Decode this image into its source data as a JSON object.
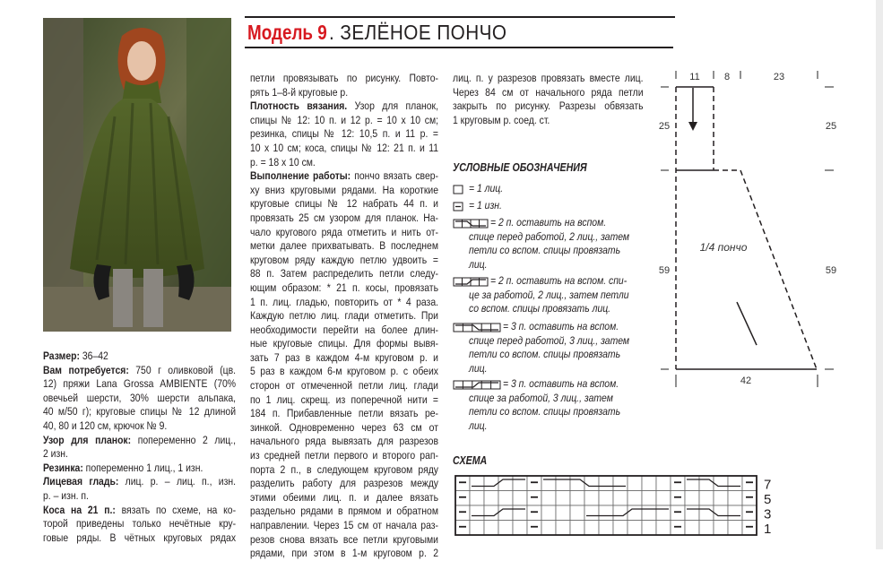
{
  "header": {
    "model": "Модель 9",
    "title": ". ЗЕЛЁНОЕ ПОНЧО"
  },
  "colors": {
    "accent": "#d71920",
    "text": "#231f20",
    "yarn": "#4b5a22"
  },
  "photo": {
    "alt_icon": "woman-in-green-poncho-photo"
  },
  "columns": [
    [
      {
        "label": "Размер:",
        "lines": [
          " 36–42"
        ]
      },
      {
        "label": "Вам потребуется:",
        "lines": [
          " 750 г оливковой (цв.",
          "12) пряжи Lana Grossa AMBIENTE (70%",
          "овечьей шерсти, 30% шерсти альпака,",
          "40 м/50 г); круговые спицы № 12 длиной",
          "40, 80 и 120 см, крючок № 9."
        ]
      },
      {
        "label": "Узор для планок:",
        "lines": [
          " попеременно 2 лиц.,",
          "2 изн."
        ]
      },
      {
        "label": "Резинка:",
        "lines": [
          " попеременно 1 лиц., 1 изн."
        ]
      },
      {
        "label": "Лицевая гладь:",
        "lines": [
          " лиц. р. – лиц. п., изн.",
          "р. – изн. п."
        ]
      },
      {
        "label": "Коса на 21 п.:",
        "lines": [
          " вязать по схеме, на ко-",
          "торой приведены только нечётные кру-",
          "говые ряды. В чётных круговых рядах"
        ],
        "continues": true
      }
    ],
    [
      {
        "label": "",
        "lines": [
          "петли провязывать по рисунку. Повто-",
          "рять 1–8-й круговые р."
        ]
      },
      {
        "label": "Плотность вязания.",
        "lines": [
          " Узор для планок,",
          "спицы № 12: 10 п. и 12 р. = 10 х 10 см;",
          "резинка, спицы № 12: 10,5 п. и 11 р. =",
          "10 х 10 см; коса, спицы № 12: 21 п. и 11",
          "р. = 18 х 10 см."
        ]
      },
      {
        "label": "Выполнение работы:",
        "lines": [
          " пончо вязать свер-",
          "ху вниз круговыми рядами. На короткие",
          "круговые спицы № 12 набрать 44 п. и",
          "провязать 25 см узором для планок. На-",
          "чало кругового ряда отметить и нить от-",
          "метки далее прихватывать. В последнем",
          "круговом ряду каждую петлю удвоить =",
          "88 п. Затем распределить петли следу-",
          "ющим образом: * 21 п. косы, провязать",
          "1 п. лиц. гладью, повторить от * 4 раза.",
          "Каждую петлю лиц. глади отметить. При",
          "необходимости перейти на более длин-",
          "ные круговые спицы. Для формы вывя-",
          "зать 7 раз в каждом 4-м круговом р. и",
          "5 раз в каждом 6-м круговом р. с обеих",
          "сторон от отмеченной петли лиц. глади",
          "по 1 лиц. скрещ. из поперечной нити =",
          "184 п. Прибавленные петли вязать ре-",
          "зинкой. Одновременно через 63 см от",
          "начального ряда вывязать для разрезов",
          "из средней петли первого и второго рап-",
          "порта 2 п., в следующем круговом ряду",
          "разделить работу для разрезов между",
          "этими обеими лиц. п. и далее вязать",
          "раздельно рядами в прямом и обратном",
          "направлении. Через 15 см от начала раз-",
          "резов снова вязать все петли круговыми",
          "рядами, при этом в 1-м круговом р. 2"
        ],
        "continues": true
      }
    ],
    [
      {
        "label": "",
        "lines": [
          "лиц. п. у разрезов провязать вместе лиц.",
          "Через 84 см от начального ряда петли",
          "закрыть по рисунку. Разрезы обвязать",
          "1 круговым р. соед. ст."
        ]
      }
    ]
  ],
  "legend": {
    "title": "УСЛОВНЫЕ ОБОЗНАЧЕНИЯ",
    "items": [
      {
        "symbol": "knit-square-icon",
        "lines": [
          "= 1 лиц."
        ]
      },
      {
        "symbol": "purl-square-icon",
        "lines": [
          "= 1 изн."
        ]
      },
      {
        "symbol": "cable-2-front-icon",
        "lines": [
          "= 2 п. оставить на вспом.",
          "спице перед работой, 2 лиц., затем",
          "петли со вспом. спицы провязать",
          "лиц."
        ]
      },
      {
        "symbol": "cable-2-back-icon",
        "lines": [
          "= 2 п. оставить на вспом. спи-",
          "це за работой, 2 лиц., затем петли",
          "со вспом. спицы провязать лиц."
        ]
      },
      {
        "symbol": "cable-3-front-icon",
        "lines": [
          "= 3 п. оставить на вспом.",
          "спице перед работой, 3 лиц., затем",
          "петли со вспом. спицы провязать",
          "лиц."
        ]
      },
      {
        "symbol": "cable-3-back-icon",
        "lines": [
          "= 3 п. оставить на вспом.",
          "спице за работой, 3 лиц., затем",
          "петли со вспом. спицы провязать",
          "лиц."
        ]
      }
    ]
  },
  "chart": {
    "title": "СХЕМА",
    "stitches": 21,
    "row_labels": [
      "7",
      "5",
      "3",
      "1"
    ],
    "purl_columns": [
      1,
      6,
      16,
      21
    ],
    "cables": [
      {
        "row": "7",
        "from": 2,
        "to": 5,
        "dir": "up"
      },
      {
        "row": "7",
        "from": 7,
        "to": 12,
        "dir": "down"
      },
      {
        "row": "7",
        "from": 17,
        "to": 20,
        "dir": "down"
      },
      {
        "row": "3",
        "from": 2,
        "to": 5,
        "dir": "up"
      },
      {
        "row": "3",
        "from": 10,
        "to": 15,
        "dir": "up"
      },
      {
        "row": "3",
        "from": 17,
        "to": 20,
        "dir": "down"
      }
    ]
  },
  "schematic": {
    "label": "1/4 пончо",
    "top_widths": [
      "11",
      "8",
      "23"
    ],
    "heights_left": [
      "25",
      "59"
    ],
    "heights_right": [
      "25",
      "59"
    ],
    "bottom_width": "42"
  }
}
